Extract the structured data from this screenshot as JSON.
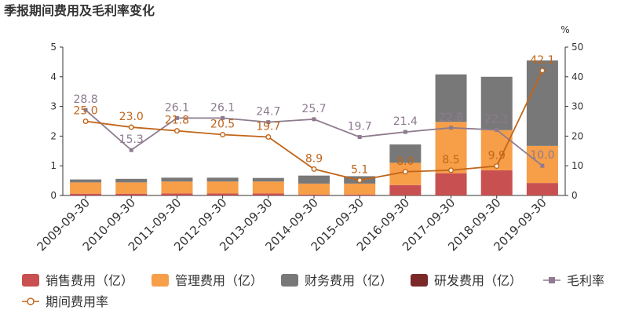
{
  "chart_data": {
    "type": "bar",
    "title": "季报期间费用及毛利率变化",
    "categories": [
      "2009-09-30",
      "2010-09-30",
      "2011-09-30",
      "2012-09-30",
      "2013-09-30",
      "2014-09-30",
      "2015-09-30",
      "2016-09-30",
      "2017-09-30",
      "2018-09-30",
      "2019-09-30"
    ],
    "y_left": {
      "ylim": [
        0,
        5
      ],
      "ticks": [
        0,
        1,
        2,
        3,
        4,
        5
      ]
    },
    "y_right": {
      "ylim": [
        0,
        50
      ],
      "ticks": [
        0,
        10,
        20,
        30,
        40,
        50
      ],
      "unit": "%"
    },
    "stacked_bars": [
      {
        "name": "销售费用（亿）",
        "color": "#c85050",
        "values": [
          0.06,
          0.06,
          0.07,
          0.07,
          0.07,
          0.03,
          0.03,
          0.35,
          0.75,
          0.85,
          0.42
        ]
      },
      {
        "name": "管理费用（亿）",
        "color": "#f79e49",
        "values": [
          0.38,
          0.38,
          0.4,
          0.4,
          0.4,
          0.37,
          0.37,
          0.75,
          1.73,
          1.35,
          1.25
        ]
      },
      {
        "name": "财务费用（亿）",
        "color": "#787878",
        "values": [
          0.1,
          0.12,
          0.13,
          0.13,
          0.12,
          0.27,
          0.25,
          0.62,
          1.6,
          1.8,
          2.88
        ]
      },
      {
        "name": "研发费用（亿）",
        "color": "#7a2828",
        "values": [
          0,
          0,
          0,
          0,
          0,
          0,
          0,
          0,
          0,
          0,
          0
        ]
      }
    ],
    "lines": [
      {
        "name": "毛利率",
        "color": "#8e7b8f",
        "marker": "square",
        "values": [
          28.8,
          15.3,
          26.1,
          26.1,
          24.7,
          25.7,
          19.7,
          21.4,
          22.8,
          22.1,
          10.0
        ],
        "labels": [
          "28.8",
          "15.3",
          "26.1",
          "26.1",
          "24.7",
          "25.7",
          "19.7",
          "21.4",
          "22.8",
          "22.1",
          "10.0"
        ]
      },
      {
        "name": "期间费用率",
        "color": "#c0651a",
        "marker": "circle",
        "values": [
          25.0,
          23.0,
          21.8,
          20.5,
          19.7,
          8.9,
          5.1,
          8.0,
          8.5,
          9.9,
          42.1
        ],
        "labels": [
          "25.0",
          "23.0",
          "21.8",
          "20.5",
          "19.7",
          "8.9",
          "5.1",
          "8.0",
          "8.5",
          "9.9",
          "42.1"
        ]
      }
    ],
    "legend_position": "bottom",
    "grid": false
  }
}
